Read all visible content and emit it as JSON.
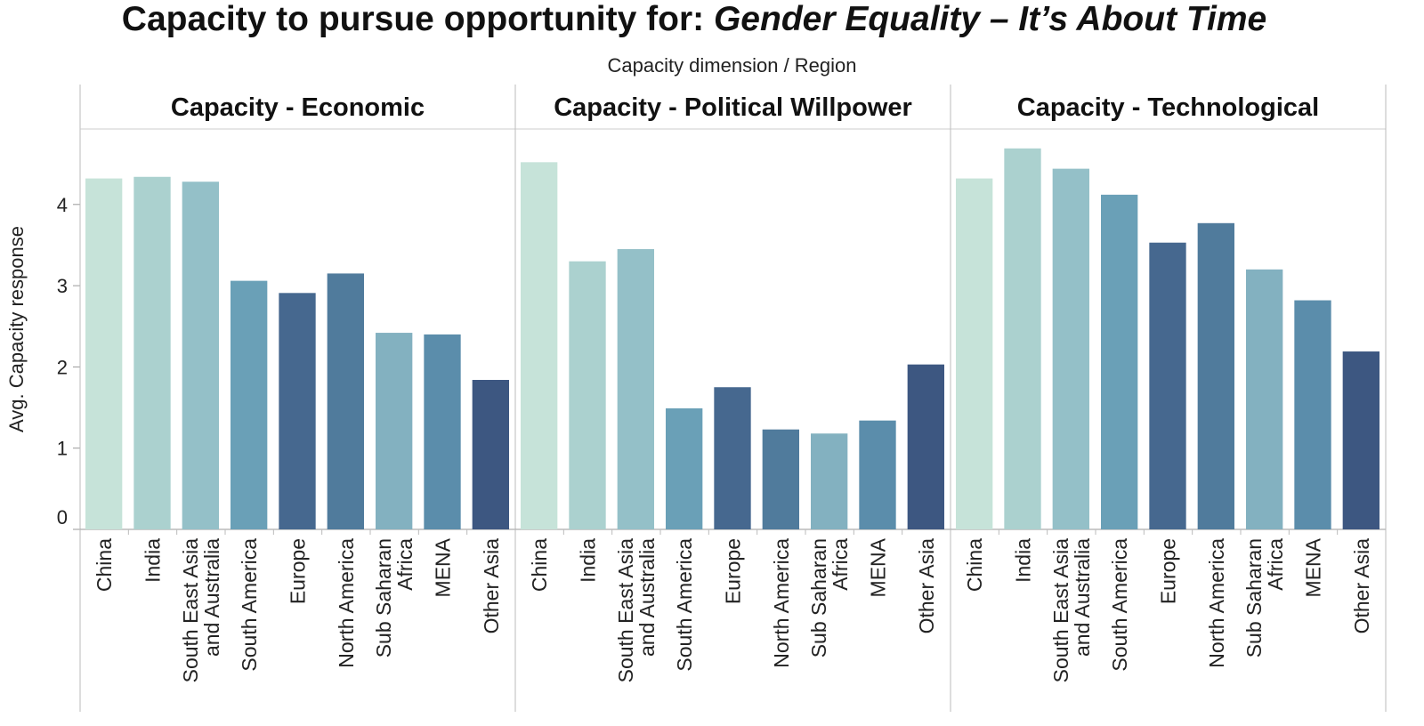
{
  "chart_data": {
    "type": "bar",
    "title": "Capacity to pursue opportunity for:",
    "title_italic": "Gender Equality – It’s About Time",
    "column_header": "Capacity dimension  /  Region",
    "ylabel": "Avg. Capacity response",
    "ylim": [
      0,
      4.9
    ],
    "yticks": [
      "0",
      "1",
      "2",
      "3",
      "4"
    ],
    "grid": false,
    "categories": [
      "China",
      "India",
      "South East Asia and Australia",
      "South America",
      "Europe",
      "North America",
      "Sub Saharan Africa",
      "MENA",
      "Other Asia"
    ],
    "category_lines": [
      [
        "China"
      ],
      [
        "India"
      ],
      [
        "South East Asia",
        "and Australia"
      ],
      [
        "South America"
      ],
      [
        "Europe"
      ],
      [
        "North America"
      ],
      [
        "Sub Saharan",
        "Africa"
      ],
      [
        "MENA"
      ],
      [
        "Other Asia"
      ]
    ],
    "colors": [
      "#c6e3d9",
      "#abd1cf",
      "#94c0c8",
      "#6aa0b7",
      "#46688f",
      "#507b9c",
      "#83b1c0",
      "#5b8dab",
      "#3d5781"
    ],
    "panels": [
      {
        "name": "Capacity - Economic",
        "values": [
          4.32,
          4.34,
          4.28,
          3.06,
          2.91,
          3.15,
          2.42,
          2.4,
          1.84
        ]
      },
      {
        "name": "Capacity - Political Willpower",
        "values": [
          4.52,
          3.3,
          3.45,
          1.49,
          1.75,
          1.23,
          1.18,
          1.34,
          2.03
        ]
      },
      {
        "name": "Capacity - Technological",
        "values": [
          4.32,
          4.69,
          4.44,
          4.12,
          3.53,
          3.77,
          3.2,
          2.82,
          2.19
        ]
      }
    ]
  }
}
